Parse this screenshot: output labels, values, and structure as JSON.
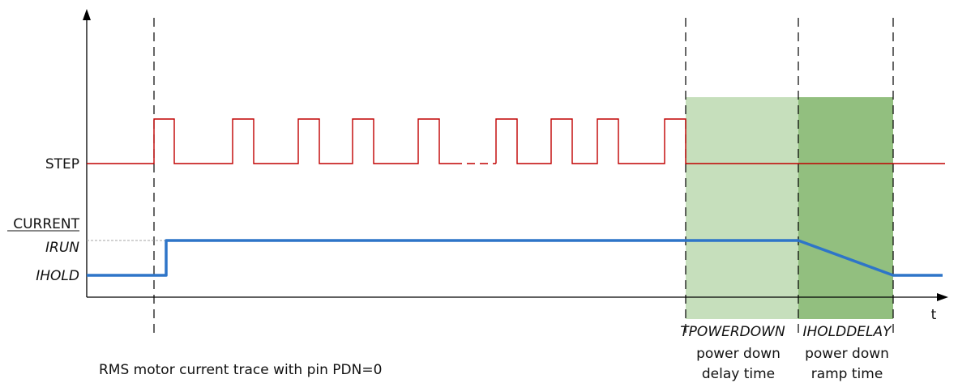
{
  "signals": {
    "step": "STEP",
    "current": "CURRENT",
    "irun": "IRUN",
    "ihold": "IHOLD"
  },
  "axis": {
    "time": "t"
  },
  "phases": {
    "tpowerdown": {
      "name": "TPOWERDOWN",
      "line1": "power down",
      "line2": "delay time",
      "color": "#c6dfbc"
    },
    "iholddelay": {
      "name": "IHOLDDELAY",
      "line1": "power down",
      "line2": "ramp time",
      "color": "#92bf7f"
    }
  },
  "caption": "RMS motor current trace with pin PDN=0",
  "colors": {
    "step": "#c00000",
    "current": "#2e75c8",
    "axis": "#000000",
    "guide": "#a6a6a6"
  }
}
